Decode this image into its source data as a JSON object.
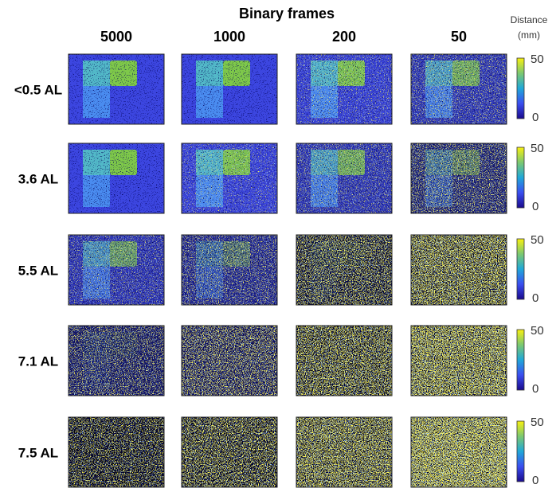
{
  "title": "Binary frames",
  "columns": [
    "5000",
    "1000",
    "200",
    "50"
  ],
  "rows": [
    "<0.5 AL",
    "3.6 AL",
    "5.5 AL",
    "7.1 AL",
    "7.5 AL"
  ],
  "colorbar": {
    "label": [
      "Distance",
      "(mm)"
    ],
    "ticks": [
      "50",
      "0"
    ]
  }
}
